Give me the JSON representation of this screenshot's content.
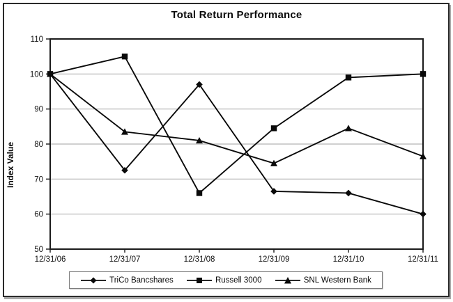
{
  "chart_data": {
    "type": "line",
    "title": "Total Return Performance",
    "xlabel": "",
    "ylabel": "Index Value",
    "categories": [
      "12/31/06",
      "12/31/07",
      "12/31/08",
      "12/31/09",
      "12/31/10",
      "12/31/11"
    ],
    "series": [
      {
        "name": "TriCo Bancshares",
        "marker": "diamond",
        "values": [
          100,
          72.5,
          97,
          66.5,
          66,
          60
        ]
      },
      {
        "name": "Russell 3000",
        "marker": "square",
        "values": [
          100,
          105,
          66,
          84.5,
          99,
          100
        ]
      },
      {
        "name": "SNL Western Bank",
        "marker": "triangle",
        "values": [
          100,
          83.5,
          81,
          74.5,
          84.5,
          76.5
        ]
      }
    ],
    "ylim": [
      50,
      110
    ],
    "ytick_step": 10,
    "grid": true,
    "legend_position": "bottom",
    "line_color": "#0a0a0a",
    "grid_color": "#b3b3b3",
    "frame_color": "#1a1a1a"
  }
}
